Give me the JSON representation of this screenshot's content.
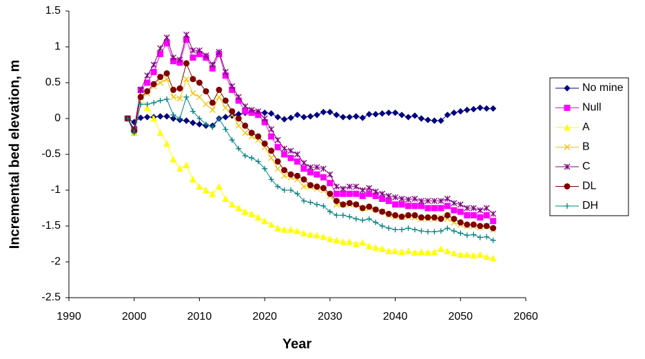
{
  "chart_data": {
    "type": "line",
    "xlabel": "Year",
    "ylabel": "Incremental bed elevation, m",
    "x": [
      1999,
      2000,
      2001,
      2002,
      2003,
      2004,
      2005,
      2006,
      2007,
      2008,
      2009,
      2010,
      2011,
      2012,
      2013,
      2014,
      2015,
      2016,
      2017,
      2018,
      2019,
      2020,
      2021,
      2022,
      2023,
      2024,
      2025,
      2026,
      2027,
      2028,
      2029,
      2030,
      2031,
      2032,
      2033,
      2034,
      2035,
      2036,
      2037,
      2038,
      2039,
      2040,
      2041,
      2042,
      2043,
      2044,
      2045,
      2046,
      2047,
      2048,
      2049,
      2050,
      2051,
      2052,
      2053,
      2054,
      2055
    ],
    "series": [
      {
        "name": "No mine",
        "color": "#000080",
        "marker": "diamond",
        "values": [
          0,
          -0.05,
          0.01,
          0.02,
          0.02,
          0.03,
          0.03,
          0,
          -0.02,
          -0.03,
          -0.06,
          -0.08,
          -0.1,
          -0.1,
          0,
          0.02,
          0.04,
          0.06,
          0.08,
          0.08,
          0.08,
          0.08,
          0.07,
          0.02,
          -0.01,
          0.01,
          0.05,
          0.02,
          0.03,
          0.05,
          0.09,
          0.09,
          0.05,
          0.02,
          0.02,
          0.03,
          0.01,
          0.06,
          0.06,
          0.07,
          0.08,
          0.08,
          0.05,
          0.02,
          0.04,
          0,
          -0.02,
          -0.03,
          -0.03,
          0.05,
          0.08,
          0.1,
          0.12,
          0.13,
          0.15,
          0.14,
          0.14
        ]
      },
      {
        "name": "Null",
        "color": "#FF00FF",
        "marker": "square",
        "values": [
          0,
          -0.15,
          0.4,
          0.5,
          0.65,
          0.9,
          1.05,
          0.8,
          0.78,
          1.1,
          0.85,
          0.9,
          0.85,
          0.7,
          0.9,
          0.6,
          0.4,
          0.25,
          0.1,
          0.08,
          0.05,
          -0.05,
          -0.25,
          -0.4,
          -0.5,
          -0.55,
          -0.6,
          -0.7,
          -0.75,
          -0.78,
          -0.82,
          -0.9,
          -1.05,
          -1.05,
          -1.05,
          -1.05,
          -1.08,
          -1.05,
          -1.08,
          -1.12,
          -1.15,
          -1.2,
          -1.2,
          -1.22,
          -1.22,
          -1.22,
          -1.25,
          -1.25,
          -1.25,
          -1.22,
          -1.28,
          -1.3,
          -1.35,
          -1.35,
          -1.38,
          -1.35,
          -1.43
        ]
      },
      {
        "name": "A",
        "color": "#FFFF00",
        "marker": "triangle",
        "values": [
          0,
          -0.2,
          0.3,
          0.15,
          0,
          -0.2,
          -0.35,
          -0.57,
          -0.7,
          -0.65,
          -0.85,
          -0.95,
          -1,
          -1.05,
          -0.95,
          -1.12,
          -1.2,
          -1.25,
          -1.3,
          -1.33,
          -1.38,
          -1.43,
          -1.48,
          -1.53,
          -1.55,
          -1.55,
          -1.57,
          -1.6,
          -1.62,
          -1.63,
          -1.65,
          -1.68,
          -1.7,
          -1.72,
          -1.72,
          -1.75,
          -1.73,
          -1.78,
          -1.8,
          -1.82,
          -1.85,
          -1.85,
          -1.86,
          -1.85,
          -1.87,
          -1.86,
          -1.87,
          -1.86,
          -1.82,
          -1.85,
          -1.88,
          -1.9,
          -1.9,
          -1.91,
          -1.9,
          -1.93,
          -1.95
        ]
      },
      {
        "name": "B",
        "color": "#F2C300",
        "marker": "x",
        "values": [
          0,
          -0.2,
          0.3,
          0.35,
          0.45,
          0.5,
          0.55,
          0.3,
          0.28,
          0.55,
          0.35,
          0.3,
          0.2,
          0.12,
          0.3,
          0.15,
          0.05,
          -0.1,
          -0.2,
          -0.25,
          -0.3,
          -0.4,
          -0.55,
          -0.7,
          -0.8,
          -0.82,
          -0.85,
          -0.95,
          -0.95,
          -0.98,
          -1,
          -1.08,
          -1.2,
          -1.2,
          -1.2,
          -1.2,
          -1.25,
          -1.25,
          -1.27,
          -1.3,
          -1.35,
          -1.37,
          -1.38,
          -1.37,
          -1.38,
          -1.4,
          -1.4,
          -1.4,
          -1.38,
          -1.4,
          -1.45,
          -1.48,
          -1.5,
          -1.5,
          -1.52,
          -1.5,
          -1.55
        ]
      },
      {
        "name": "C",
        "color": "#800080",
        "marker": "star",
        "values": [
          0,
          -0.15,
          0.4,
          0.6,
          0.75,
          0.98,
          1.13,
          0.85,
          0.82,
          1.17,
          0.95,
          0.95,
          0.88,
          0.75,
          0.93,
          0.65,
          0.45,
          0.3,
          0.17,
          0.12,
          0.1,
          0,
          -0.15,
          -0.3,
          -0.42,
          -0.45,
          -0.5,
          -0.62,
          -0.68,
          -0.68,
          -0.7,
          -0.78,
          -0.95,
          -0.98,
          -0.95,
          -0.95,
          -1,
          -0.97,
          -1.02,
          -1.05,
          -1.08,
          -1.1,
          -1.12,
          -1.13,
          -1.12,
          -1.15,
          -1.15,
          -1.15,
          -1.15,
          -1.12,
          -1.18,
          -1.2,
          -1.25,
          -1.25,
          -1.28,
          -1.25,
          -1.33
        ]
      },
      {
        "name": "DL",
        "color": "#800000",
        "marker": "circle",
        "values": [
          0,
          -0.17,
          0.3,
          0.38,
          0.48,
          0.58,
          0.63,
          0.4,
          0.42,
          0.77,
          0.55,
          0.5,
          0.38,
          0.22,
          0.4,
          0.25,
          0.1,
          0,
          -0.1,
          -0.2,
          -0.25,
          -0.35,
          -0.45,
          -0.6,
          -0.72,
          -0.78,
          -0.8,
          -0.85,
          -0.93,
          -0.95,
          -0.97,
          -1.05,
          -1.15,
          -1.2,
          -1.18,
          -1.2,
          -1.25,
          -1.23,
          -1.27,
          -1.3,
          -1.33,
          -1.35,
          -1.37,
          -1.35,
          -1.35,
          -1.38,
          -1.38,
          -1.38,
          -1.4,
          -1.35,
          -1.4,
          -1.45,
          -1.48,
          -1.48,
          -1.5,
          -1.5,
          -1.53
        ]
      },
      {
        "name": "DH",
        "color": "#008080",
        "marker": "plus",
        "values": [
          0,
          -0.2,
          0.2,
          0.2,
          0.22,
          0.25,
          0.27,
          0.05,
          0,
          0.3,
          0.1,
          0,
          -0.08,
          -0.12,
          0,
          -0.15,
          -0.3,
          -0.42,
          -0.52,
          -0.55,
          -0.6,
          -0.7,
          -0.85,
          -0.95,
          -1,
          -1,
          -1.05,
          -1.15,
          -1.17,
          -1.2,
          -1.22,
          -1.3,
          -1.35,
          -1.35,
          -1.37,
          -1.4,
          -1.42,
          -1.4,
          -1.45,
          -1.5,
          -1.53,
          -1.55,
          -1.55,
          -1.53,
          -1.55,
          -1.57,
          -1.58,
          -1.58,
          -1.57,
          -1.53,
          -1.57,
          -1.6,
          -1.63,
          -1.62,
          -1.66,
          -1.65,
          -1.7
        ]
      }
    ],
    "xlim": [
      1990,
      2060
    ],
    "xticks": [
      1990,
      2000,
      2010,
      2020,
      2030,
      2040,
      2050,
      2060
    ],
    "ylim": [
      -2.5,
      1.5
    ],
    "yticks": [
      1.5,
      1,
      0.5,
      0,
      -0.5,
      -1,
      -1.5,
      -2,
      -2.5
    ],
    "grid": false,
    "legend": "right"
  }
}
